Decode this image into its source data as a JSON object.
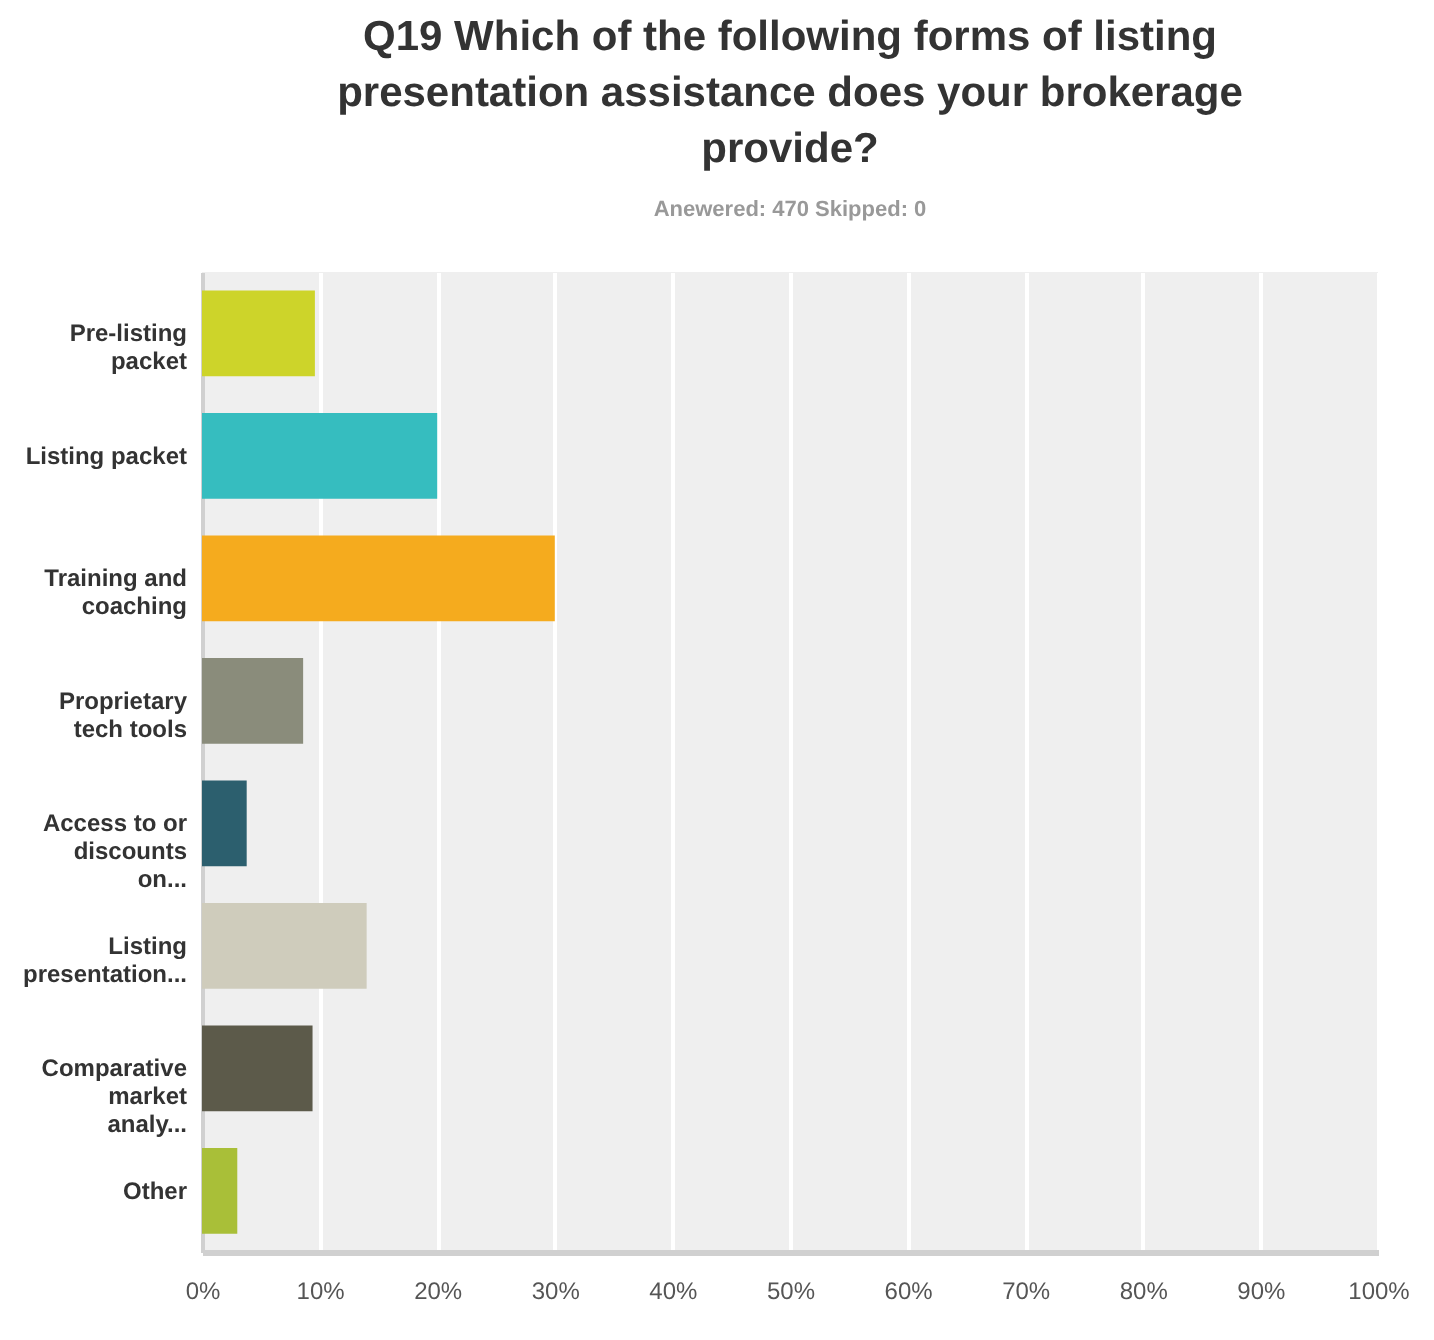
{
  "chart_data": {
    "type": "bar",
    "orientation": "horizontal",
    "title": "Q19 Which of the following forms of listing presentation assistance does your brokerage provide?",
    "subtitle": "Anewered: 470    Skipped: 0",
    "categories": [
      "Pre-listing packet",
      "Listing packet",
      "Training and coaching",
      "Proprietary tech tools",
      "Access to or discounts on...",
      "Listing presentation...",
      "Comparative market analy...",
      "Other"
    ],
    "values": [
      9.6,
      20,
      30,
      8.6,
      3.8,
      14,
      9.4,
      3
    ],
    "colors": [
      "#cdd42a",
      "#36bdbf",
      "#f5ab1e",
      "#8a8c7b",
      "#2c5f6e",
      "#cfccbc",
      "#5c5a4a",
      "#a9bf38"
    ],
    "xlim": [
      0,
      100
    ],
    "xticks": [
      {
        "value": 0,
        "label": "0%"
      },
      {
        "value": 10,
        "label": "10%"
      },
      {
        "value": 20,
        "label": "20%"
      },
      {
        "value": 30,
        "label": "30%"
      },
      {
        "value": 40,
        "label": "40%"
      },
      {
        "value": 50,
        "label": "50%"
      },
      {
        "value": 60,
        "label": "60%"
      },
      {
        "value": 70,
        "label": "70%"
      },
      {
        "value": 80,
        "label": "80%"
      },
      {
        "value": 90,
        "label": "90%"
      },
      {
        "value": 100,
        "label": "100%"
      }
    ],
    "grid": "x",
    "legend": false
  }
}
